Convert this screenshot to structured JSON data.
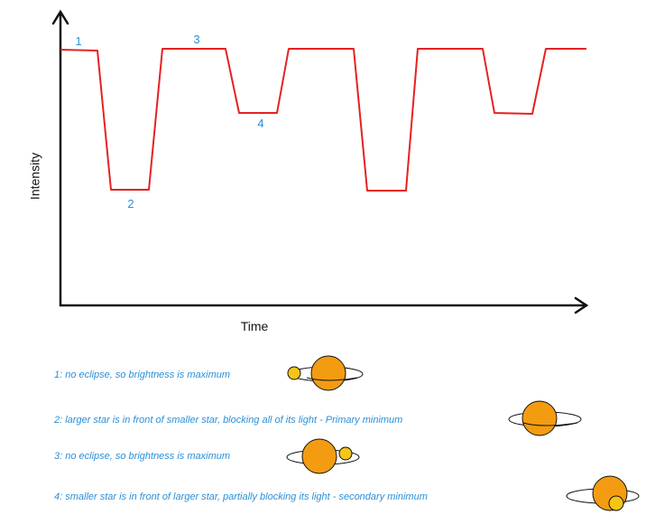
{
  "diagram": {
    "y_label": "Intensity",
    "x_label": "Time",
    "point_labels": [
      "1",
      "2",
      "3",
      "4"
    ],
    "notes": [
      "1: no eclipse, so brightness is maximum",
      "2: larger star is in front of smaller star, blocking all of its light - Primary minimum",
      "3: no eclipse, so brightness is maximum",
      "4: smaller star is in front of larger star, partially blocking its light - secondary minimum"
    ]
  }
}
